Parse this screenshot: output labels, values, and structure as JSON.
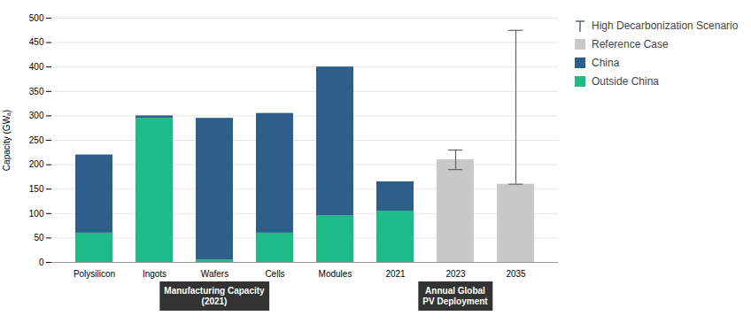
{
  "chart_data": {
    "type": "bar",
    "stacked": true,
    "categories": [
      "Polysilicon",
      "Ingots",
      "Wafers",
      "Cells",
      "Modules",
      "2021",
      "2023",
      "2035"
    ],
    "ylabel": "Capacity (GWₐ)",
    "ylim": [
      0,
      500
    ],
    "yticks": [
      0,
      50,
      100,
      150,
      200,
      250,
      300,
      350,
      400,
      450,
      500
    ],
    "grid": true,
    "legend": "right",
    "series": [
      {
        "name": "Outside China",
        "color": "#1eba87",
        "values": [
          60,
          295,
          5,
          60,
          95,
          105,
          null,
          null
        ]
      },
      {
        "name": "China",
        "color": "#2e5f8a",
        "values": [
          160,
          5,
          290,
          245,
          305,
          60,
          null,
          null
        ]
      },
      {
        "name": "Reference Case",
        "color": "#c8c8c8",
        "values": [
          null,
          null,
          null,
          null,
          null,
          null,
          210,
          160
        ]
      },
      {
        "name": "High Decarbonization Scenario",
        "type": "errorbar",
        "color": "#666666",
        "values": [
          null,
          null,
          null,
          null,
          null,
          null,
          210,
          160
        ],
        "error_low": [
          null,
          null,
          null,
          null,
          null,
          null,
          20,
          0
        ],
        "error_high": [
          null,
          null,
          null,
          null,
          null,
          null,
          20,
          315
        ]
      }
    ],
    "groups": [
      {
        "label": "Manufacturing Capacity\n(2021)",
        "categories": [
          "Polysilicon",
          "Ingots",
          "Wafers",
          "Cells",
          "Modules"
        ],
        "color": "#333333",
        "text_color": "#ffffff"
      },
      {
        "label": "Annual Global\nPV Deployment",
        "categories": [
          "2021",
          "2023",
          "2035"
        ],
        "color": "#333333",
        "text_color": "#ffffff"
      }
    ]
  }
}
